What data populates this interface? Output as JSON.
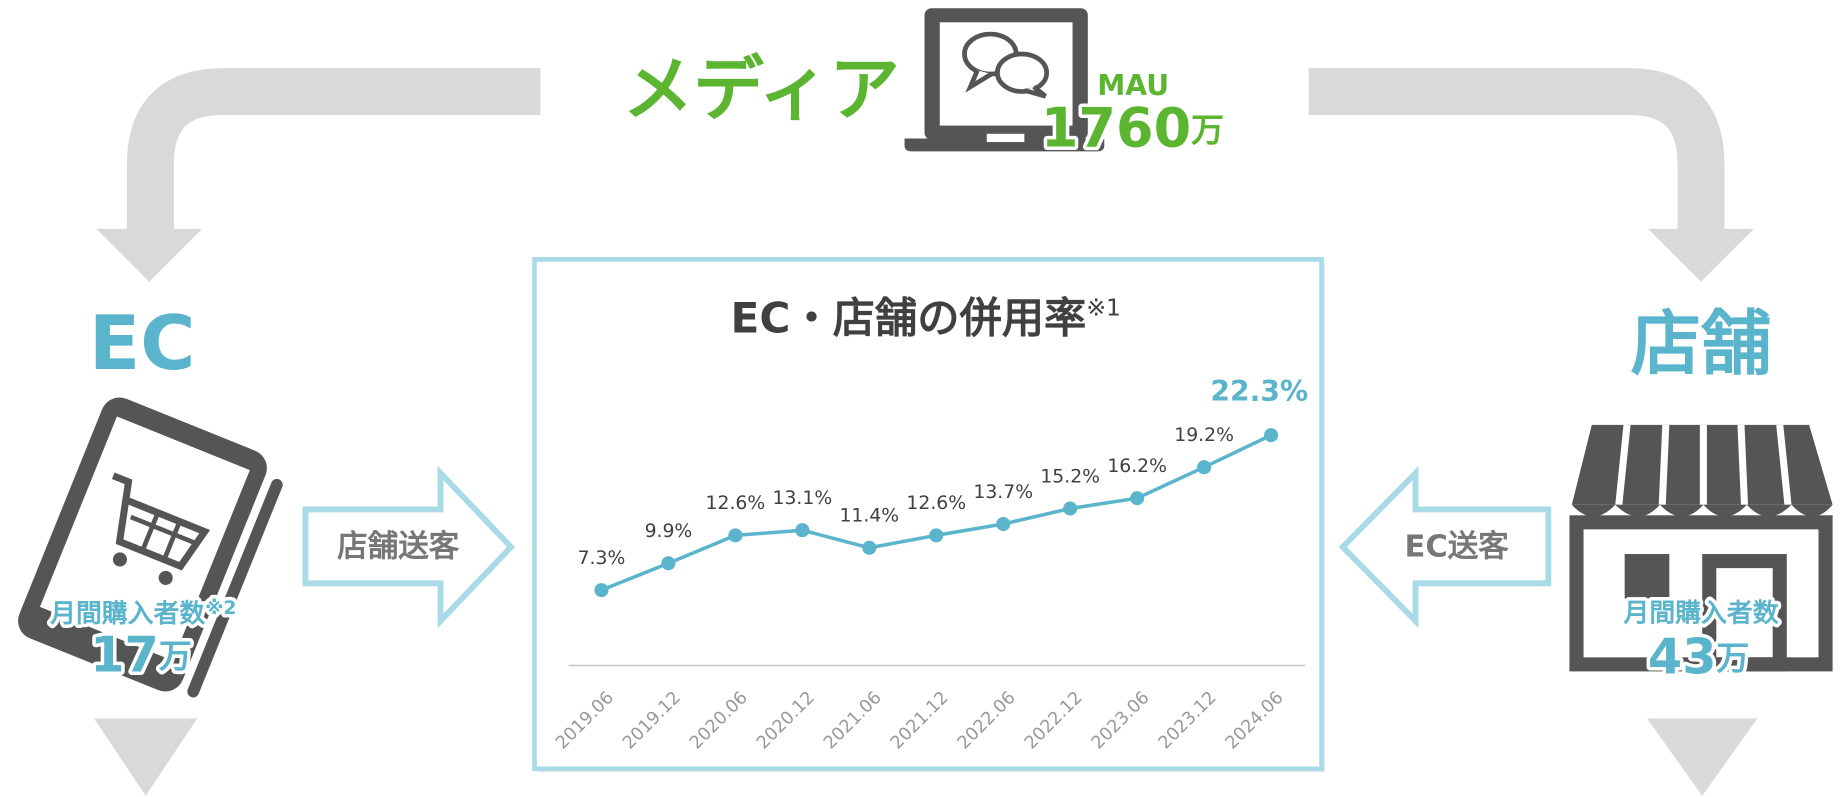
{
  "media": {
    "label": "メディア",
    "metric": "MAU",
    "value": "1760",
    "unit": "万"
  },
  "ec": {
    "label": "EC",
    "metric": "月間購入者数",
    "note": "※2",
    "value": "17",
    "unit": "万"
  },
  "store": {
    "label": "店舗",
    "metric": "月間購入者数",
    "value": "43",
    "unit": "万"
  },
  "flows": {
    "to_store": "店舗送客",
    "to_ec": "EC送客"
  },
  "chart_data": {
    "type": "line",
    "title": "EC・店舗の併用率",
    "title_note": "※1",
    "categories": [
      "2019.06",
      "2019.12",
      "2020.06",
      "2020.12",
      "2021.06",
      "2021.12",
      "2022.06",
      "2022.12",
      "2023.06",
      "2023.12",
      "2024.06"
    ],
    "values": [
      7.3,
      9.9,
      12.6,
      13.1,
      11.4,
      12.6,
      13.7,
      15.2,
      16.2,
      19.2,
      22.3
    ],
    "value_labels": [
      "7.3%",
      "9.9%",
      "12.6%",
      "13.1%",
      "11.4%",
      "12.6%",
      "13.7%",
      "15.2%",
      "16.2%",
      "19.2%",
      "22.3%"
    ],
    "color": "#5ab4cc",
    "ylim": [
      0,
      25
    ]
  }
}
